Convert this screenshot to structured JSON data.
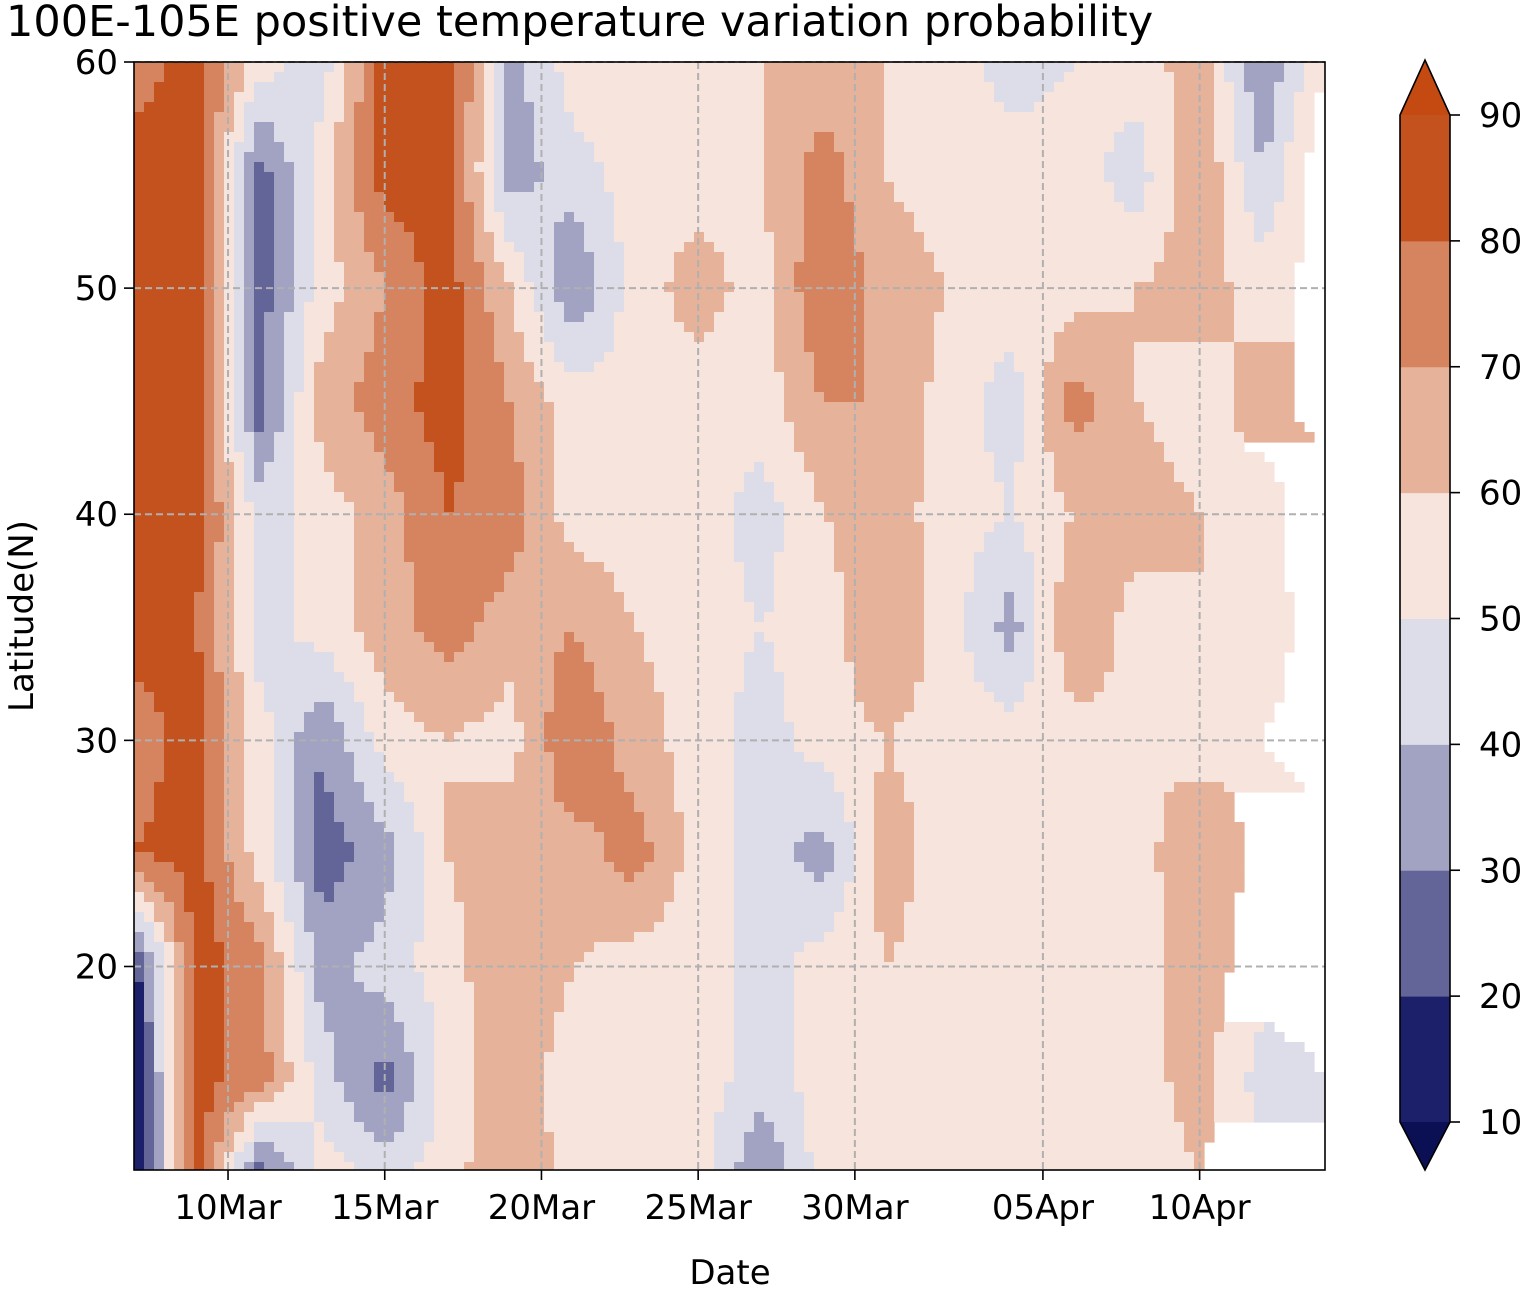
{
  "chart_data": {
    "type": "heatmap",
    "title": "100E-105E positive temperature variation probability",
    "xlabel": "Date",
    "ylabel": "Latitude(N)",
    "x_range": [
      "2020-03-07",
      "2020-04-14"
    ],
    "y_range": [
      11,
      60
    ],
    "x_ticks": [
      {
        "date": "2020-03-10",
        "label": "10Mar"
      },
      {
        "date": "2020-03-15",
        "label": "15Mar"
      },
      {
        "date": "2020-03-20",
        "label": "20Mar"
      },
      {
        "date": "2020-03-25",
        "label": "25Mar"
      },
      {
        "date": "2020-03-30",
        "label": "30Mar"
      },
      {
        "date": "2020-04-05",
        "label": "05Apr"
      },
      {
        "date": "2020-04-10",
        "label": "10Apr"
      }
    ],
    "y_ticks": [
      {
        "value": 20,
        "label": "20"
      },
      {
        "value": 30,
        "label": "30"
      },
      {
        "value": 40,
        "label": "40"
      },
      {
        "value": 50,
        "label": "50"
      },
      {
        "value": 60,
        "label": "60"
      }
    ],
    "grid": true,
    "colorbar": {
      "placement": "right",
      "levels": [
        10,
        20,
        30,
        40,
        50,
        60,
        70,
        80,
        90
      ],
      "tick_labels": [
        "10",
        "20",
        "30",
        "40",
        "50",
        "60",
        "70",
        "80",
        "90"
      ],
      "colors": [
        "#1c206b",
        "#636497",
        "#a2a2c3",
        "#dcdde9",
        "#f6e4dd",
        "#e7b29a",
        "#d6845f",
        "#c4521e"
      ],
      "under_color": "#0b1055",
      "over_color": "#c44a12",
      "extend": "both"
    },
    "latitudes": [
      60,
      55,
      50,
      45,
      40,
      35,
      30,
      25,
      20,
      15,
      11
    ],
    "dates": [
      "2020-03-07",
      "2020-03-09",
      "2020-03-11",
      "2020-03-13",
      "2020-03-15",
      "2020-03-17",
      "2020-03-19",
      "2020-03-21",
      "2020-03-23",
      "2020-03-25",
      "2020-03-27",
      "2020-03-29",
      "2020-03-31",
      "2020-04-02",
      "2020-04-04",
      "2020-04-06",
      "2020-04-08",
      "2020-04-10",
      "2020-04-12",
      "2020-04-14"
    ],
    "values": [
      [
        75,
        85,
        55,
        45,
        85,
        90,
        35,
        55,
        60,
        55,
        60,
        65,
        60,
        55,
        45,
        50,
        55,
        65,
        30,
        60
      ],
      [
        85,
        85,
        25,
        55,
        85,
        85,
        35,
        45,
        55,
        55,
        60,
        75,
        60,
        55,
        55,
        55,
        45,
        70,
        40,
        70
      ],
      [
        85,
        85,
        25,
        55,
        70,
        85,
        60,
        30,
        55,
        65,
        55,
        80,
        65,
        60,
        55,
        55,
        60,
        65,
        55,
        65
      ],
      [
        85,
        85,
        25,
        65,
        75,
        85,
        70,
        55,
        55,
        55,
        55,
        70,
        70,
        55,
        45,
        75,
        60,
        55,
        65,
        55
      ],
      [
        85,
        85,
        45,
        55,
        65,
        80,
        75,
        55,
        55,
        55,
        45,
        60,
        65,
        55,
        50,
        60,
        65,
        60,
        55,
        70
      ],
      [
        85,
        80,
        45,
        55,
        65,
        75,
        65,
        70,
        60,
        55,
        50,
        55,
        70,
        55,
        35,
        70,
        55,
        60,
        55,
        65
      ],
      [
        75,
        85,
        55,
        30,
        55,
        60,
        55,
        80,
        65,
        55,
        45,
        55,
        60,
        55,
        55,
        55,
        60,
        55,
        60,
        65
      ],
      [
        80,
        85,
        55,
        25,
        35,
        60,
        70,
        65,
        75,
        55,
        45,
        35,
        65,
        55,
        55,
        55,
        55,
        70,
        55,
        55
      ],
      [
        15,
        85,
        75,
        35,
        45,
        55,
        70,
        60,
        55,
        55,
        45,
        55,
        60,
        55,
        55,
        60,
        55,
        65,
        55,
        55
      ],
      [
        10,
        85,
        75,
        45,
        25,
        55,
        65,
        55,
        55,
        55,
        45,
        55,
        55,
        60,
        55,
        55,
        55,
        65,
        45,
        50
      ],
      [
        10,
        85,
        25,
        55,
        45,
        55,
        70,
        55,
        55,
        55,
        30,
        55,
        55,
        55,
        60,
        55,
        55,
        60,
        55,
        50
      ]
    ]
  }
}
